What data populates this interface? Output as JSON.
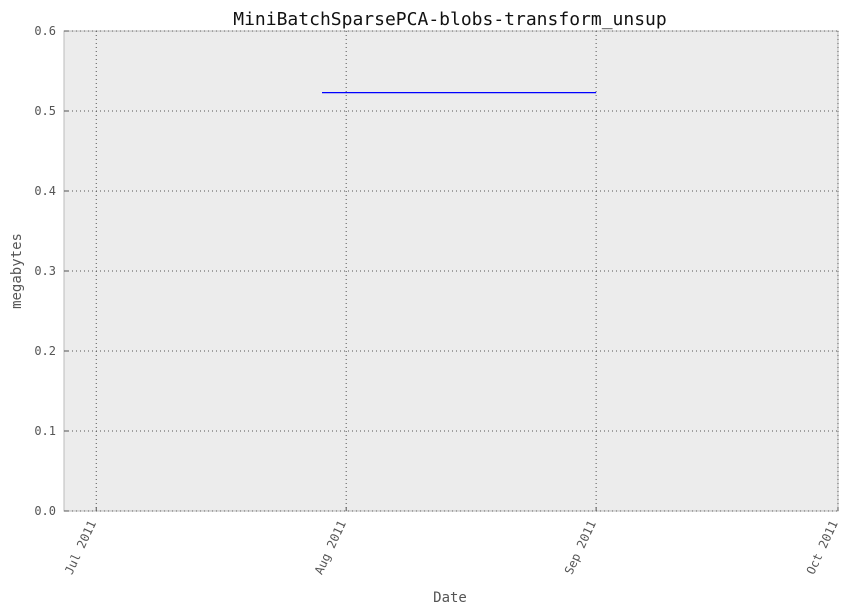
{
  "chart_data": {
    "type": "line",
    "title": "MiniBatchSparsePCA-blobs-transform_unsup",
    "xlabel": "Date",
    "ylabel": "megabytes",
    "xlim": [
      "2011-06-27",
      "2011-10-01"
    ],
    "ylim": [
      0,
      0.6
    ],
    "x_ticks": [
      {
        "date": "2011-07-01",
        "label": "Jul 2011"
      },
      {
        "date": "2011-08-01",
        "label": "Aug 2011"
      },
      {
        "date": "2011-09-01",
        "label": "Sep 2011"
      },
      {
        "date": "2011-10-01",
        "label": "Oct 2011"
      }
    ],
    "y_ticks": [
      {
        "value": 0.0,
        "label": "0.0"
      },
      {
        "value": 0.1,
        "label": "0.1"
      },
      {
        "value": 0.2,
        "label": "0.2"
      },
      {
        "value": 0.3,
        "label": "0.3"
      },
      {
        "value": 0.4,
        "label": "0.4"
      },
      {
        "value": 0.5,
        "label": "0.5"
      },
      {
        "value": 0.6,
        "label": "0.6"
      }
    ],
    "grid": true,
    "series": [
      {
        "color": "#0000ff",
        "points": [
          {
            "x": "2011-07-29",
            "y": 0.523
          },
          {
            "x": "2011-09-01",
            "y": 0.523
          }
        ]
      }
    ]
  }
}
